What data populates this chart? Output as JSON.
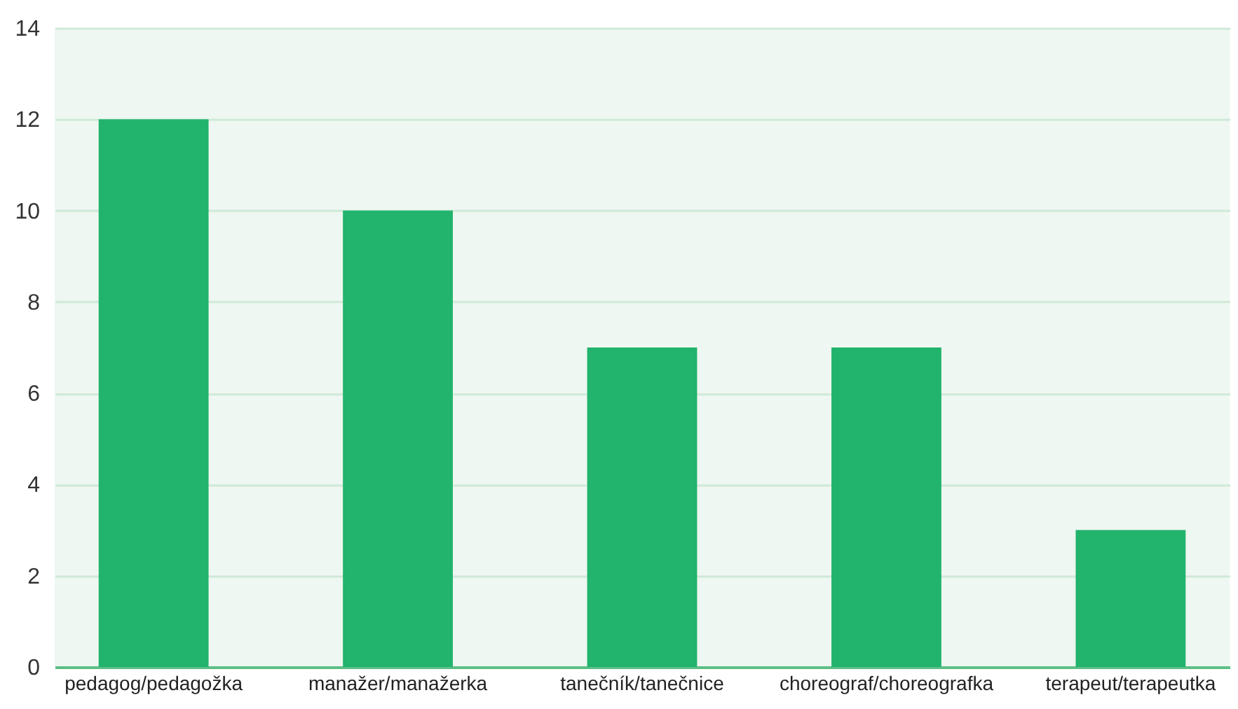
{
  "chart_data": {
    "type": "bar",
    "categories": [
      "pedagog/pedagožka",
      "manažer/manažerka",
      "tanečník/tanečnice",
      "choreograf/choreografka",
      "terapeut/terapeutka"
    ],
    "values": [
      12,
      10,
      7,
      7,
      3
    ],
    "color": "#22b36c",
    "ylim": [
      0,
      14
    ],
    "yticks": [
      0,
      2,
      4,
      6,
      8,
      10,
      12,
      14
    ],
    "grid": "y"
  }
}
